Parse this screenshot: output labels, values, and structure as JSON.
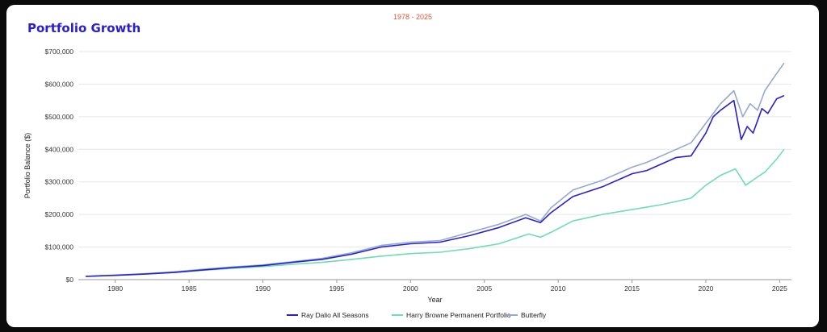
{
  "page": {
    "title": "Portfolio Growth",
    "subtitle": "1978 - 2025"
  },
  "chart_data": {
    "type": "line",
    "title": "Portfolio Growth",
    "subtitle": "1978 - 2025",
    "xlabel": "Year",
    "ylabel": "Portfolio Balance ($)",
    "xlim": [
      1977.5,
      2025.8
    ],
    "ylim": [
      0,
      700000
    ],
    "x_ticks": [
      1980,
      1985,
      1990,
      1995,
      2000,
      2005,
      2010,
      2015,
      2020,
      2025
    ],
    "y_ticks": [
      0,
      100000,
      200000,
      300000,
      400000,
      500000,
      600000,
      700000
    ],
    "y_tick_labels": [
      "$0",
      "$100,000",
      "$200,000",
      "$300,000",
      "$400,000",
      "$500,000",
      "$600,000",
      "$700,000"
    ],
    "grid": "horizontal",
    "legend_position": "bottom",
    "series": [
      {
        "name": "Ray Dalio All Seasons",
        "color": "#2a1fd0",
        "x": [
          1978,
          1980,
          1982,
          1984,
          1986,
          1988,
          1990,
          1992,
          1994,
          1996,
          1998,
          2000,
          2002,
          2004,
          2006,
          2007.8,
          2008.8,
          2009.5,
          2011,
          2013,
          2015,
          2016,
          2018,
          2019,
          2020,
          2020.5,
          2021,
          2021.9,
          2022.4,
          2022.8,
          2023.2,
          2023.8,
          2024.2,
          2024.8,
          2025.3
        ],
        "y": [
          10000,
          13000,
          17000,
          22000,
          30000,
          37000,
          43000,
          53000,
          62000,
          78000,
          100000,
          110000,
          115000,
          135000,
          160000,
          190000,
          175000,
          205000,
          255000,
          285000,
          325000,
          335000,
          375000,
          380000,
          450000,
          500000,
          520000,
          550000,
          430000,
          470000,
          450000,
          525000,
          510000,
          555000,
          565000
        ]
      },
      {
        "name": "Harry Browne Permanent Portfolio",
        "color": "#6fdcb4",
        "x": [
          1978,
          1980,
          1982,
          1984,
          1986,
          1988,
          1990,
          1992,
          1994,
          1996,
          1998,
          2000,
          2002,
          2004,
          2006,
          2008,
          2008.8,
          2009.5,
          2011,
          2013,
          2015,
          2017,
          2019,
          2020,
          2021,
          2022,
          2022.7,
          2023.5,
          2024,
          2024.8,
          2025.3
        ],
        "y": [
          10000,
          13000,
          17000,
          22000,
          29000,
          35000,
          40000,
          47000,
          53000,
          62000,
          72000,
          80000,
          84000,
          95000,
          110000,
          140000,
          130000,
          145000,
          180000,
          200000,
          215000,
          230000,
          250000,
          290000,
          320000,
          340000,
          290000,
          315000,
          330000,
          370000,
          400000
        ]
      },
      {
        "name": "Butterfly",
        "color": "#93aacd",
        "x": [
          1978,
          1980,
          1982,
          1984,
          1986,
          1988,
          1990,
          1992,
          1994,
          1996,
          1998,
          2000,
          2002,
          2004,
          2006,
          2007.8,
          2008.8,
          2009.5,
          2011,
          2013,
          2015,
          2016,
          2018,
          2019,
          2020,
          2021,
          2021.9,
          2022.5,
          2023,
          2023.5,
          2024,
          2024.6,
          2025.3
        ],
        "y": [
          10000,
          14000,
          18000,
          24000,
          32000,
          39000,
          45000,
          55000,
          65000,
          82000,
          105000,
          115000,
          120000,
          145000,
          170000,
          200000,
          180000,
          220000,
          275000,
          305000,
          345000,
          360000,
          400000,
          420000,
          480000,
          540000,
          580000,
          500000,
          540000,
          520000,
          580000,
          620000,
          665000
        ]
      }
    ]
  }
}
